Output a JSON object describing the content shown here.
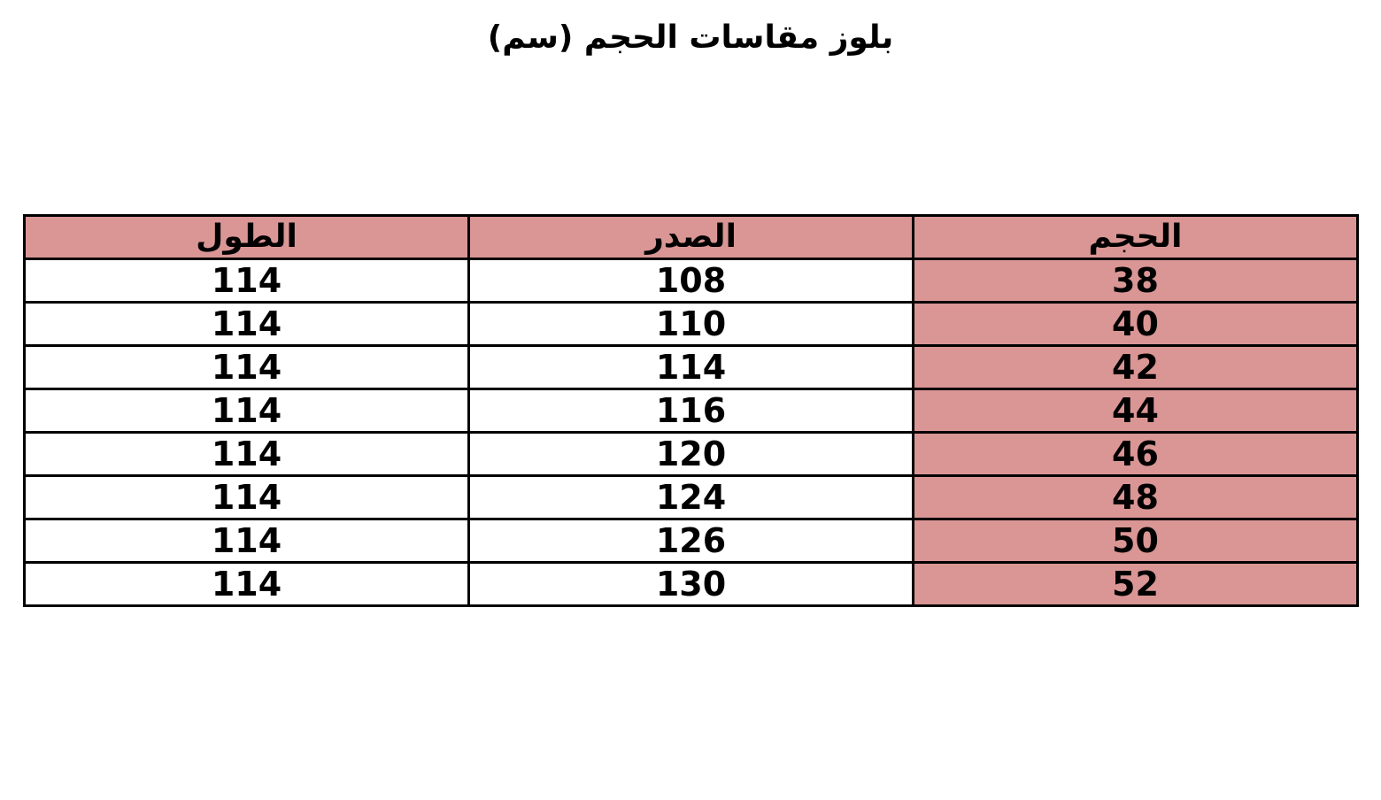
{
  "title": "بلوز مقاسات الحجم (سم)",
  "colors": {
    "header_fill": "#da9695",
    "size_column_fill": "#da9695"
  },
  "table": {
    "headers": [
      "الطول",
      "الصدر",
      "الحجم"
    ],
    "rows": [
      [
        "114",
        "108",
        "38"
      ],
      [
        "114",
        "110",
        "40"
      ],
      [
        "114",
        "114",
        "42"
      ],
      [
        "114",
        "116",
        "44"
      ],
      [
        "114",
        "120",
        "46"
      ],
      [
        "114",
        "124",
        "48"
      ],
      [
        "114",
        "126",
        "50"
      ],
      [
        "114",
        "130",
        "52"
      ]
    ]
  }
}
